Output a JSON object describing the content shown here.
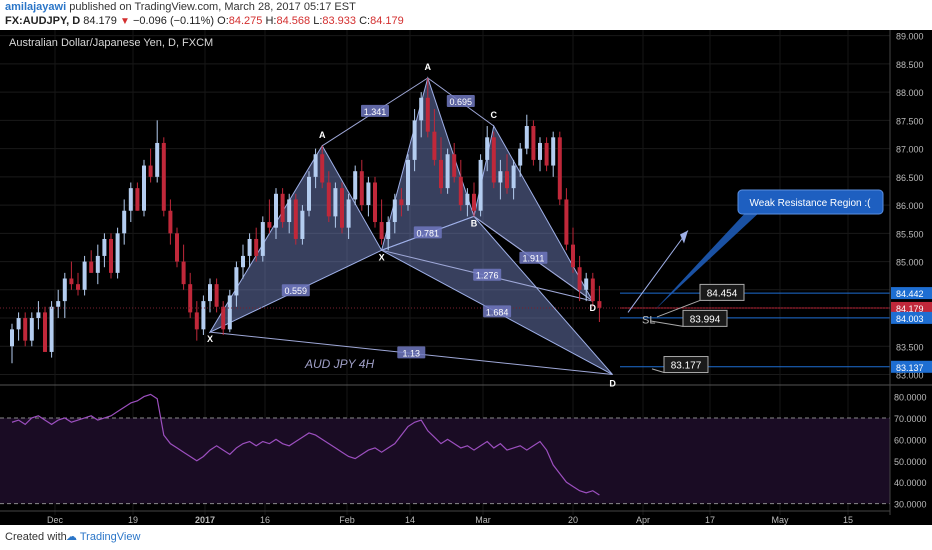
{
  "header": {
    "author": "amilajayawi",
    "published_text": "published on TradingView.com, March 28, 2017 05:17 EST",
    "symbol": "FX:AUDJPY, D",
    "last": "84.179",
    "change": "−0.096 (−0.11%)",
    "o_label": "O:",
    "o": "84.275",
    "h_label": "H:",
    "h": "84.568",
    "l_label": "L:",
    "l": "83.933",
    "c_label": "C:",
    "c": "84.179"
  },
  "footer": {
    "created_with": "Created with",
    "brand": "TradingView"
  },
  "colors": {
    "bg": "#000000",
    "bull": "#b4cdf0",
    "bear": "#c0283a",
    "rsi": "#9c4fbf",
    "pattern_fill": "#7c8fd0",
    "accent_blue": "#1e6ed2"
  },
  "chart_data": {
    "type": "candlestick",
    "title": "Australian Dollar/Japanese Yen, D, FXCM",
    "y_ticks": [
      "89.000",
      "88.500",
      "88.000",
      "87.500",
      "87.000",
      "86.500",
      "86.000",
      "85.500",
      "85.000",
      "84.500",
      "84.000",
      "83.500",
      "83.000"
    ],
    "ylim": [
      82.85,
      89.1
    ],
    "x_ticks": [
      "Dec",
      "19",
      "2017",
      "16",
      "Feb",
      "14",
      "Mar",
      "20",
      "Apr",
      "17",
      "May",
      "15"
    ],
    "price_labels": [
      {
        "text": "84.442",
        "value": 84.442,
        "color": "#1e6ed2"
      },
      {
        "text": "84.179",
        "value": 84.179,
        "color": "#c0283a"
      },
      {
        "text": "84.003",
        "value": 84.003,
        "color": "#1e6ed2"
      },
      {
        "text": "83.137",
        "value": 83.137,
        "color": "#1e6ed2"
      }
    ],
    "pattern_points": [
      {
        "label": "X",
        "value": 83.75
      },
      {
        "label": "A",
        "value": 87.05
      },
      {
        "label": "X",
        "value": 85.2
      },
      {
        "label": "A",
        "value": 88.25
      },
      {
        "label": "B",
        "value": 85.8
      },
      {
        "label": "C",
        "value": 87.4
      },
      {
        "label": "D",
        "value": 84.3
      },
      {
        "label": "D",
        "value": 83.0
      }
    ],
    "ratios": [
      "1.341",
      "0.695",
      "0.559",
      "0.781",
      "1.276",
      "1.911",
      "1.684",
      "1.13"
    ],
    "annotations": {
      "pattern_text": "AUD JPY 4H",
      "callout": "Weak Resistance Region :(",
      "sl": "SL",
      "box1": "84.454",
      "box2": "83.994",
      "box3": "83.177"
    },
    "candles": [
      [
        83.5,
        83.9,
        83.2,
        83.8
      ],
      [
        83.8,
        84.1,
        83.6,
        84
      ],
      [
        84,
        84.1,
        83.5,
        83.6
      ],
      [
        83.6,
        84.1,
        83.5,
        84
      ],
      [
        84,
        84.3,
        83.8,
        84.1
      ],
      [
        84.1,
        84.2,
        83.4,
        83.4
      ],
      [
        83.4,
        84.3,
        83.3,
        84.2
      ],
      [
        84.2,
        84.5,
        84,
        84.3
      ],
      [
        84.3,
        84.8,
        84,
        84.7
      ],
      [
        84.7,
        85,
        84.5,
        84.6
      ],
      [
        84.6,
        84.8,
        84.4,
        84.5
      ],
      [
        84.5,
        85.1,
        84.4,
        85
      ],
      [
        85,
        85.2,
        84.8,
        84.8
      ],
      [
        84.8,
        85.3,
        84.6,
        85.1
      ],
      [
        85.1,
        85.5,
        84.9,
        85.4
      ],
      [
        85.4,
        85.5,
        84.7,
        84.8
      ],
      [
        84.8,
        85.6,
        84.7,
        85.5
      ],
      [
        85.5,
        86.1,
        85.3,
        85.9
      ],
      [
        85.9,
        86.4,
        85.7,
        86.3
      ],
      [
        86.3,
        86.4,
        85.9,
        85.9
      ],
      [
        85.9,
        86.8,
        85.8,
        86.7
      ],
      [
        86.7,
        87,
        86.4,
        86.5
      ],
      [
        86.5,
        87.5,
        86.4,
        87.1
      ],
      [
        87.1,
        87.2,
        85.8,
        85.9
      ],
      [
        85.9,
        86.1,
        85.3,
        85.5
      ],
      [
        85.5,
        85.6,
        84.9,
        85
      ],
      [
        85,
        85.3,
        84.5,
        84.6
      ],
      [
        84.6,
        84.8,
        84,
        84.1
      ],
      [
        84.1,
        84.3,
        83.6,
        83.8
      ],
      [
        83.8,
        84.4,
        83.7,
        84.3
      ],
      [
        84.3,
        84.7,
        84.1,
        84.6
      ],
      [
        84.6,
        84.7,
        84.1,
        84.2
      ],
      [
        84.2,
        84.3,
        83.7,
        83.8
      ],
      [
        83.8,
        84.5,
        83.75,
        84.4
      ],
      [
        84.4,
        85,
        84.2,
        84.9
      ],
      [
        84.9,
        85.3,
        84.7,
        85.1
      ],
      [
        85.1,
        85.5,
        84.9,
        85.4
      ],
      [
        85.4,
        85.6,
        85,
        85.1
      ],
      [
        85.1,
        85.8,
        85,
        85.7
      ],
      [
        85.7,
        86.1,
        85.5,
        85.6
      ],
      [
        85.6,
        86.3,
        85.4,
        86.2
      ],
      [
        86.2,
        86.3,
        85.6,
        85.7
      ],
      [
        85.7,
        86.2,
        85.5,
        86.1
      ],
      [
        86.1,
        86.2,
        85.3,
        85.4
      ],
      [
        85.4,
        86,
        85.3,
        85.9
      ],
      [
        85.9,
        86.6,
        85.8,
        86.5
      ],
      [
        86.5,
        87,
        86.3,
        86.9
      ],
      [
        86.9,
        87.05,
        86.3,
        86.4
      ],
      [
        86.4,
        86.6,
        85.7,
        85.8
      ],
      [
        85.8,
        86.4,
        85.6,
        86.3
      ],
      [
        86.3,
        86.4,
        85.5,
        85.6
      ],
      [
        85.6,
        86.2,
        85.4,
        86.1
      ],
      [
        86.1,
        86.7,
        86,
        86.6
      ],
      [
        86.6,
        86.8,
        85.9,
        86
      ],
      [
        86,
        86.5,
        85.8,
        86.4
      ],
      [
        86.4,
        86.5,
        85.6,
        85.7
      ],
      [
        85.7,
        86.1,
        85.3,
        85.4
      ],
      [
        85.4,
        85.8,
        85.2,
        85.7
      ],
      [
        85.7,
        86.2,
        85.5,
        86.1
      ],
      [
        86.1,
        86.3,
        85.8,
        86
      ],
      [
        86,
        86.9,
        85.9,
        86.8
      ],
      [
        86.8,
        87.7,
        86.6,
        87.5
      ],
      [
        87.5,
        88,
        87.2,
        87.9
      ],
      [
        87.9,
        88.25,
        87.2,
        87.3
      ],
      [
        87.3,
        87.7,
        86.7,
        86.8
      ],
      [
        86.8,
        87.2,
        86.2,
        86.3
      ],
      [
        86.3,
        87,
        86.2,
        86.9
      ],
      [
        86.9,
        87.1,
        86.4,
        86.5
      ],
      [
        86.5,
        86.8,
        85.9,
        86
      ],
      [
        86,
        86.3,
        85.8,
        86.2
      ],
      [
        86.2,
        86.4,
        85.8,
        85.9
      ],
      [
        85.9,
        86.9,
        85.8,
        86.8
      ],
      [
        86.8,
        87.4,
        86.6,
        87.2
      ],
      [
        87.2,
        87.3,
        86.3,
        86.4
      ],
      [
        86.4,
        86.8,
        86.1,
        86.6
      ],
      [
        86.6,
        86.9,
        86.2,
        86.3
      ],
      [
        86.3,
        86.8,
        86.1,
        86.7
      ],
      [
        86.7,
        87.1,
        86.5,
        87
      ],
      [
        87,
        87.6,
        86.9,
        87.4
      ],
      [
        87.4,
        87.5,
        86.7,
        86.8
      ],
      [
        86.8,
        87.2,
        86.6,
        87.1
      ],
      [
        87.1,
        87.2,
        86.6,
        86.7
      ],
      [
        86.7,
        87.3,
        86.5,
        87.2
      ],
      [
        87.2,
        87.3,
        86,
        86.1
      ],
      [
        86.1,
        86.3,
        85.2,
        85.3
      ],
      [
        85.3,
        85.6,
        84.8,
        84.9
      ],
      [
        84.9,
        85.1,
        84.3,
        84.5
      ],
      [
        84.5,
        84.8,
        84.3,
        84.7
      ],
      [
        84.7,
        84.8,
        84.2,
        84.3
      ],
      [
        84.3,
        84.57,
        83.93,
        84.18
      ]
    ],
    "rsi": {
      "y_ticks": [
        "80.0000",
        "70.0000",
        "60.0000",
        "50.0000",
        "40.0000",
        "30.0000"
      ],
      "ylim": [
        27,
        84
      ],
      "overbought": 70,
      "oversold": 30,
      "values": [
        68,
        69,
        67,
        70,
        71,
        69,
        67,
        69,
        70,
        68,
        69,
        70,
        71,
        69,
        70,
        71,
        73,
        75,
        77,
        78,
        80,
        81,
        79,
        62,
        58,
        56,
        54,
        52,
        50,
        52,
        55,
        57,
        55,
        53,
        56,
        58,
        59,
        57,
        59,
        58,
        60,
        58,
        57,
        59,
        61,
        63,
        62,
        60,
        58,
        56,
        54,
        52,
        51,
        53,
        55,
        56,
        54,
        56,
        58,
        62,
        66,
        68,
        69,
        64,
        61,
        58,
        60,
        58,
        56,
        57,
        55,
        57,
        59,
        56,
        58,
        55,
        56,
        57,
        55,
        57,
        59,
        55,
        48,
        44,
        40,
        38,
        36,
        35,
        36,
        34
      ]
    }
  }
}
